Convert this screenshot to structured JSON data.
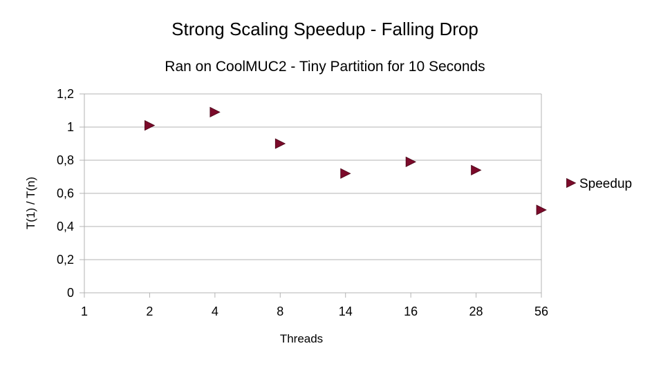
{
  "chart_data": {
    "type": "scatter",
    "title": "Strong Scaling Speedup - Falling Drop",
    "subtitle": "Ran on CoolMUC2 - Tiny Partition for 10 Seconds",
    "xlabel": "Threads",
    "ylabel": "T(1) / T(n)",
    "x_categories": [
      "1",
      "2",
      "4",
      "8",
      "14",
      "16",
      "28",
      "56"
    ],
    "ylim": [
      0,
      1.2
    ],
    "y_ticks": [
      0,
      0.2,
      0.4,
      0.6,
      0.8,
      1.0,
      1.2
    ],
    "y_tick_labels": [
      "0",
      "0,2",
      "0,4",
      "0,6",
      "0,8",
      "1",
      "1,2"
    ],
    "grid": "horizontal",
    "legend_position": "right",
    "series": [
      {
        "name": "Speedup",
        "color": "#7b0a2a",
        "marker": "triangle-right",
        "points": [
          {
            "x": "2",
            "y": 1.01
          },
          {
            "x": "4",
            "y": 1.09
          },
          {
            "x": "8",
            "y": 0.9
          },
          {
            "x": "14",
            "y": 0.72
          },
          {
            "x": "16",
            "y": 0.79
          },
          {
            "x": "28",
            "y": 0.74
          },
          {
            "x": "56",
            "y": 0.5
          }
        ]
      }
    ]
  }
}
